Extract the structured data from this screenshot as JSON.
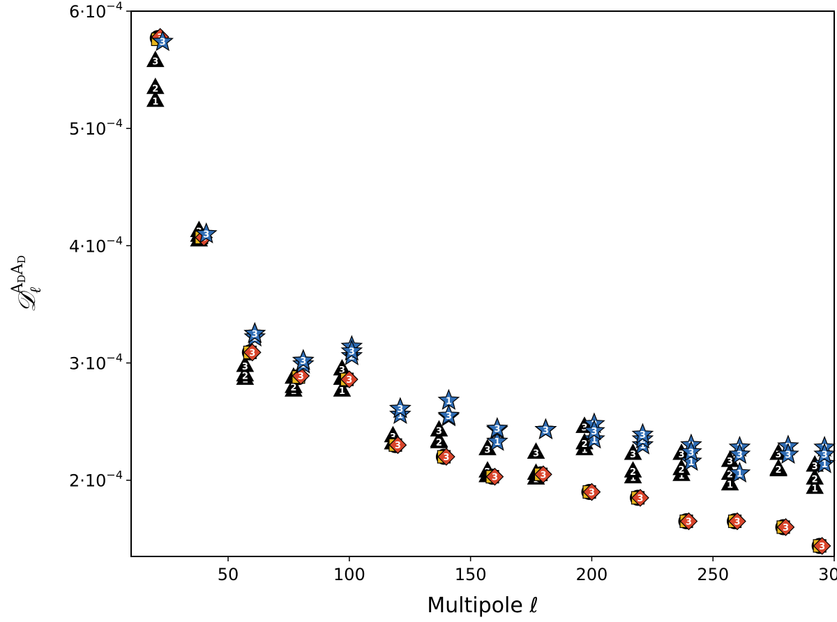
{
  "chart_data": {
    "type": "scatter",
    "xlabel": "Multipole ℓ",
    "ylabel_parts": {
      "base": "𝒟",
      "sub": "ℓ",
      "sup": "A",
      "sup_sub": "D"
    },
    "xlim": [
      10,
      300
    ],
    "ylim": [
      0.000135,
      0.0006
    ],
    "xticks": [
      50,
      100,
      150,
      200,
      250,
      300
    ],
    "xtick_labels": [
      "50",
      "100",
      "150",
      "200",
      "250",
      "300"
    ],
    "yticks": [
      0.0002,
      0.0003,
      0.0004,
      0.0005,
      0.0006
    ],
    "ytick_labels": [
      "2·10",
      "3·10",
      "4·10",
      "5·10",
      "6·10"
    ],
    "ytick_exponent": "−4",
    "grid": false,
    "colors": {
      "star": "#2f6db5",
      "diamond": "#d9452b",
      "square": "#e8b61d",
      "circle": "#000000",
      "triangle": "#000000"
    },
    "series": [
      {
        "marker": "triangle",
        "points": [
          {
            "x": 20,
            "y": 0.000524,
            "label": "1"
          },
          {
            "x": 20,
            "y": 0.000535,
            "label": "2"
          },
          {
            "x": 20,
            "y": 0.000558,
            "label": "3"
          },
          {
            "x": 38,
            "y": 0.000405,
            "label": "1"
          },
          {
            "x": 38,
            "y": 0.000409,
            "label": "2"
          },
          {
            "x": 38,
            "y": 0.000413,
            "label": "3"
          },
          {
            "x": 57,
            "y": 0.000287,
            "label": "1"
          },
          {
            "x": 57,
            "y": 0.00029,
            "label": "2"
          },
          {
            "x": 57,
            "y": 0.000298,
            "label": "3"
          },
          {
            "x": 77,
            "y": 0.000277,
            "label": "1"
          },
          {
            "x": 77,
            "y": 0.00028,
            "label": "2"
          },
          {
            "x": 77,
            "y": 0.000288,
            "label": "3"
          },
          {
            "x": 97,
            "y": 0.000277,
            "label": "1"
          },
          {
            "x": 97,
            "y": 0.000287,
            "label": "2"
          },
          {
            "x": 97,
            "y": 0.000295,
            "label": "3"
          },
          {
            "x": 118,
            "y": 0.000232,
            "label": "1"
          },
          {
            "x": 118,
            "y": 0.000232,
            "label": "2"
          },
          {
            "x": 118,
            "y": 0.000238,
            "label": "3"
          },
          {
            "x": 137,
            "y": 0.000234,
            "label": "1"
          },
          {
            "x": 137,
            "y": 0.000233,
            "label": "2"
          },
          {
            "x": 137,
            "y": 0.000243,
            "label": "3"
          },
          {
            "x": 157,
            "y": 0.000204,
            "label": "1"
          },
          {
            "x": 157,
            "y": 0.000208,
            "label": "2"
          },
          {
            "x": 157,
            "y": 0.000227,
            "label": "3"
          },
          {
            "x": 177,
            "y": 0.000202,
            "label": "1"
          },
          {
            "x": 177,
            "y": 0.000206,
            "label": "2"
          },
          {
            "x": 177,
            "y": 0.000224,
            "label": "3"
          },
          {
            "x": 197,
            "y": 0.000227,
            "label": "1"
          },
          {
            "x": 197,
            "y": 0.000232,
            "label": "2"
          },
          {
            "x": 197,
            "y": 0.000246,
            "label": "3"
          },
          {
            "x": 217,
            "y": 0.000203,
            "label": "1"
          },
          {
            "x": 217,
            "y": 0.000208,
            "label": "2"
          },
          {
            "x": 217,
            "y": 0.000223,
            "label": "3"
          },
          {
            "x": 237,
            "y": 0.000205,
            "label": "1"
          },
          {
            "x": 237,
            "y": 0.00021,
            "label": "2"
          },
          {
            "x": 237,
            "y": 0.000223,
            "label": "3"
          },
          {
            "x": 257,
            "y": 0.000197,
            "label": "1"
          },
          {
            "x": 257,
            "y": 0.000206,
            "label": "2"
          },
          {
            "x": 257,
            "y": 0.000217,
            "label": "3"
          },
          {
            "x": 277,
            "y": 0.000209,
            "label": "1"
          },
          {
            "x": 277,
            "y": 0.00021,
            "label": "2"
          },
          {
            "x": 277,
            "y": 0.000223,
            "label": "3"
          },
          {
            "x": 292,
            "y": 0.000194,
            "label": "1"
          },
          {
            "x": 292,
            "y": 0.000202,
            "label": "2"
          },
          {
            "x": 292,
            "y": 0.000213,
            "label": "3"
          }
        ]
      },
      {
        "marker": "circle",
        "points": [
          {
            "x": 21,
            "y": 0.000577,
            "label": ""
          },
          {
            "x": 39,
            "y": 0.000407,
            "label": ""
          },
          {
            "x": 59,
            "y": 0.000309,
            "label": ""
          },
          {
            "x": 79,
            "y": 0.000288,
            "label": ""
          },
          {
            "x": 99,
            "y": 0.000286,
            "label": ""
          },
          {
            "x": 119,
            "y": 0.00023,
            "label": ""
          },
          {
            "x": 139,
            "y": 0.00022,
            "label": ""
          },
          {
            "x": 159,
            "y": 0.000203,
            "label": ""
          },
          {
            "x": 179,
            "y": 0.000205,
            "label": ""
          },
          {
            "x": 199,
            "y": 0.00019,
            "label": ""
          },
          {
            "x": 219,
            "y": 0.000185,
            "label": ""
          },
          {
            "x": 239,
            "y": 0.000165,
            "label": ""
          },
          {
            "x": 259,
            "y": 0.000165,
            "label": ""
          },
          {
            "x": 279,
            "y": 0.00016,
            "label": ""
          },
          {
            "x": 294,
            "y": 0.000144,
            "label": ""
          }
        ]
      },
      {
        "marker": "square",
        "points": [
          {
            "x": 21,
            "y": 0.000576,
            "label": ""
          },
          {
            "x": 39,
            "y": 0.000407,
            "label": ""
          },
          {
            "x": 59,
            "y": 0.000309,
            "label": ""
          },
          {
            "x": 79,
            "y": 0.000288,
            "label": ""
          },
          {
            "x": 99,
            "y": 0.000286,
            "label": ""
          },
          {
            "x": 119,
            "y": 0.00023,
            "label": ""
          },
          {
            "x": 139,
            "y": 0.00022,
            "label": ""
          },
          {
            "x": 159,
            "y": 0.000203,
            "label": ""
          },
          {
            "x": 179,
            "y": 0.000205,
            "label": ""
          },
          {
            "x": 199,
            "y": 0.00019,
            "label": ""
          },
          {
            "x": 219,
            "y": 0.000185,
            "label": ""
          },
          {
            "x": 239,
            "y": 0.000165,
            "label": ""
          },
          {
            "x": 259,
            "y": 0.000165,
            "label": ""
          },
          {
            "x": 279,
            "y": 0.00016,
            "label": ""
          },
          {
            "x": 294,
            "y": 0.000144,
            "label": ""
          }
        ]
      },
      {
        "marker": "diamond",
        "points": [
          {
            "x": 22,
            "y": 0.000578,
            "label": "3"
          },
          {
            "x": 40,
            "y": 0.000407,
            "label": "3"
          },
          {
            "x": 60,
            "y": 0.000309,
            "label": "3"
          },
          {
            "x": 80,
            "y": 0.000289,
            "label": "3"
          },
          {
            "x": 100,
            "y": 0.000286,
            "label": "3"
          },
          {
            "x": 120,
            "y": 0.00023,
            "label": "3"
          },
          {
            "x": 140,
            "y": 0.00022,
            "label": "3"
          },
          {
            "x": 160,
            "y": 0.000203,
            "label": "3"
          },
          {
            "x": 180,
            "y": 0.000205,
            "label": "3"
          },
          {
            "x": 200,
            "y": 0.00019,
            "label": "3"
          },
          {
            "x": 220,
            "y": 0.000185,
            "label": "3"
          },
          {
            "x": 240,
            "y": 0.000165,
            "label": "3"
          },
          {
            "x": 260,
            "y": 0.000165,
            "label": "3"
          },
          {
            "x": 280,
            "y": 0.00016,
            "label": "3"
          },
          {
            "x": 295,
            "y": 0.000144,
            "label": "3"
          }
        ]
      },
      {
        "marker": "star",
        "points": [
          {
            "x": 23,
            "y": 0.000574,
            "label": "3"
          },
          {
            "x": 41,
            "y": 0.00041,
            "label": "3"
          },
          {
            "x": 61,
            "y": 0.000322,
            "label": "1"
          },
          {
            "x": 61,
            "y": 0.000325,
            "label": "2"
          },
          {
            "x": 61,
            "y": 0.000325,
            "label": "3"
          },
          {
            "x": 81,
            "y": 0.000299,
            "label": "1"
          },
          {
            "x": 81,
            "y": 0.000302,
            "label": "2"
          },
          {
            "x": 81,
            "y": 0.000302,
            "label": "3"
          },
          {
            "x": 101,
            "y": 0.000306,
            "label": "2"
          },
          {
            "x": 101,
            "y": 0.000314,
            "label": "1"
          },
          {
            "x": 101,
            "y": 0.00031,
            "label": "3"
          },
          {
            "x": 121,
            "y": 0.000256,
            "label": "1"
          },
          {
            "x": 121,
            "y": 0.000261,
            "label": "2"
          },
          {
            "x": 121,
            "y": 0.000261,
            "label": "3"
          },
          {
            "x": 141,
            "y": 0.000268,
            "label": "1"
          },
          {
            "x": 141,
            "y": 0.000254,
            "label": "2"
          },
          {
            "x": 141,
            "y": 0.000255,
            "label": "3"
          },
          {
            "x": 161,
            "y": 0.000233,
            "label": "1"
          },
          {
            "x": 161,
            "y": 0.000243,
            "label": "2"
          },
          {
            "x": 161,
            "y": 0.000244,
            "label": "3"
          },
          {
            "x": 181,
            "y": 0.000243,
            "label": "1"
          },
          {
            "x": 181,
            "y": 0.000243,
            "label": "2"
          },
          {
            "x": 181,
            "y": 0.000243,
            "label": "3"
          },
          {
            "x": 201,
            "y": 0.000235,
            "label": "1"
          },
          {
            "x": 201,
            "y": 0.000248,
            "label": "2"
          },
          {
            "x": 201,
            "y": 0.000242,
            "label": "3"
          },
          {
            "x": 221,
            "y": 0.00023,
            "label": "1"
          },
          {
            "x": 221,
            "y": 0.000235,
            "label": "2"
          },
          {
            "x": 221,
            "y": 0.000239,
            "label": "3"
          },
          {
            "x": 241,
            "y": 0.000216,
            "label": "1"
          },
          {
            "x": 241,
            "y": 0.00023,
            "label": "2"
          },
          {
            "x": 241,
            "y": 0.000224,
            "label": "3"
          },
          {
            "x": 261,
            "y": 0.000206,
            "label": "1"
          },
          {
            "x": 261,
            "y": 0.000228,
            "label": "2"
          },
          {
            "x": 261,
            "y": 0.000222,
            "label": "3"
          },
          {
            "x": 281,
            "y": 0.000229,
            "label": "2"
          },
          {
            "x": 281,
            "y": 0.000222,
            "label": "3"
          },
          {
            "x": 296,
            "y": 0.000214,
            "label": "1"
          },
          {
            "x": 296,
            "y": 0.000228,
            "label": "2"
          },
          {
            "x": 296,
            "y": 0.000222,
            "label": "3"
          }
        ]
      }
    ]
  }
}
